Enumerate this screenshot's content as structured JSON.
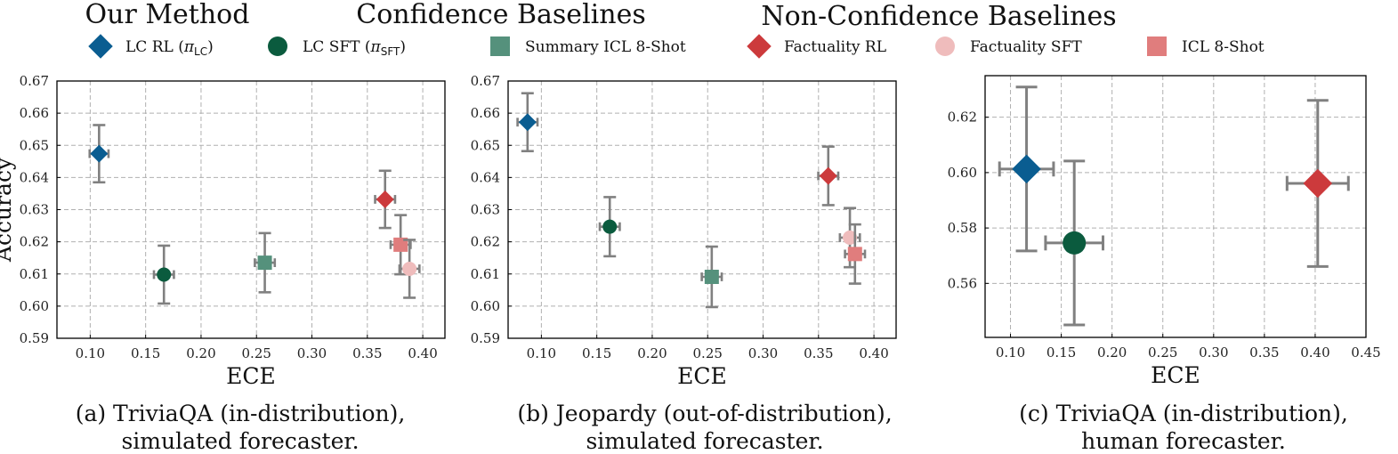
{
  "legend_groups": [
    "Our Method",
    "Confidence Baselines",
    "Non-Confidence Baselines"
  ],
  "legend": [
    {
      "label": "LC RL (",
      "symbol": "π",
      "sub": "LC",
      "close": ")",
      "marker": "diamond",
      "color": "#0a5d91"
    },
    {
      "label": "LC SFT (",
      "symbol": "π",
      "sub": "SFT",
      "close": ")",
      "marker": "circle",
      "color": "#0b5b3e"
    },
    {
      "label": "Summary ICL 8-Shot",
      "marker": "square",
      "color": "#55917c"
    },
    {
      "label": "Factuality RL",
      "marker": "diamond",
      "color": "#cc3a3c"
    },
    {
      "label": "Factuality SFT",
      "marker": "circle",
      "color": "#efbcbc"
    },
    {
      "label": "ICL 8-Shot",
      "marker": "square",
      "color": "#e07d7d"
    }
  ],
  "chart_data": [
    {
      "type": "scatter",
      "caption_line1": "(a) TriviaQA (in-distribution),",
      "caption_line2": "simulated forecaster.",
      "xlabel": "ECE",
      "ylabel": "Accuracy",
      "xlim": [
        0.07,
        0.42
      ],
      "ylim": [
        0.59,
        0.67
      ],
      "xticks": [
        "0.10",
        "0.15",
        "0.20",
        "0.25",
        "0.30",
        "0.35",
        "0.40"
      ],
      "yticks": [
        "0.59",
        "0.60",
        "0.61",
        "0.62",
        "0.63",
        "0.64",
        "0.65",
        "0.66",
        "0.67"
      ],
      "grid": true,
      "points": [
        {
          "series": 0,
          "x": 0.108,
          "y": 0.6474,
          "xerr": 0.0085,
          "yerr": 0.0089
        },
        {
          "series": 1,
          "x": 0.1665,
          "y": 0.6098,
          "xerr": 0.009,
          "yerr": 0.009
        },
        {
          "series": 2,
          "x": 0.2575,
          "y": 0.6135,
          "xerr": 0.009,
          "yerr": 0.0092
        },
        {
          "series": 3,
          "x": 0.366,
          "y": 0.6332,
          "xerr": 0.009,
          "yerr": 0.0089
        },
        {
          "series": 5,
          "x": 0.38,
          "y": 0.6191,
          "xerr": 0.009,
          "yerr": 0.0092
        },
        {
          "series": 4,
          "x": 0.388,
          "y": 0.6116,
          "xerr": 0.009,
          "yerr": 0.009
        }
      ]
    },
    {
      "type": "scatter",
      "caption_line1": "(b) Jeopardy (out-of-distribution),",
      "caption_line2": "simulated forecaster.",
      "xlabel": "ECE",
      "ylabel": "",
      "xlim": [
        0.07,
        0.42
      ],
      "ylim": [
        0.59,
        0.67
      ],
      "xticks": [
        "0.10",
        "0.15",
        "0.20",
        "0.25",
        "0.30",
        "0.35",
        "0.40"
      ],
      "yticks": [
        "0.59",
        "0.60",
        "0.61",
        "0.62",
        "0.63",
        "0.64",
        "0.65",
        "0.66",
        "0.67"
      ],
      "grid": true,
      "points": [
        {
          "series": 0,
          "x": 0.0875,
          "y": 0.6572,
          "xerr": 0.009,
          "yerr": 0.009
        },
        {
          "series": 1,
          "x": 0.1617,
          "y": 0.6247,
          "xerr": 0.009,
          "yerr": 0.0092
        },
        {
          "series": 2,
          "x": 0.2537,
          "y": 0.6091,
          "xerr": 0.009,
          "yerr": 0.0094
        },
        {
          "series": 3,
          "x": 0.3588,
          "y": 0.6405,
          "xerr": 0.009,
          "yerr": 0.0091
        },
        {
          "series": 4,
          "x": 0.3783,
          "y": 0.6213,
          "xerr": 0.009,
          "yerr": 0.0092
        },
        {
          "series": 5,
          "x": 0.3829,
          "y": 0.6162,
          "xerr": 0.009,
          "yerr": 0.0092
        }
      ]
    },
    {
      "type": "scatter",
      "caption_line1": "(c) TriviaQA (in-distribution),",
      "caption_line2": "human forecaster.",
      "xlabel": "ECE",
      "ylabel": "",
      "xlim": [
        0.075,
        0.45
      ],
      "ylim": [
        0.5405,
        0.635
      ],
      "xticks": [
        "0.10",
        "0.15",
        "0.20",
        "0.25",
        "0.30",
        "0.35",
        "0.40",
        "0.45"
      ],
      "yticks": [
        "0.56",
        "0.58",
        "0.60",
        "0.62"
      ],
      "grid": true,
      "points": [
        {
          "series": 0,
          "x": 0.1158,
          "y": 0.6013,
          "xerr": 0.0266,
          "yerr": 0.0296
        },
        {
          "series": 1,
          "x": 0.1628,
          "y": 0.5746,
          "xerr": 0.0283,
          "yerr": 0.0296
        },
        {
          "series": 3,
          "x": 0.4025,
          "y": 0.5961,
          "xerr": 0.0302,
          "yerr": 0.03
        }
      ]
    }
  ]
}
